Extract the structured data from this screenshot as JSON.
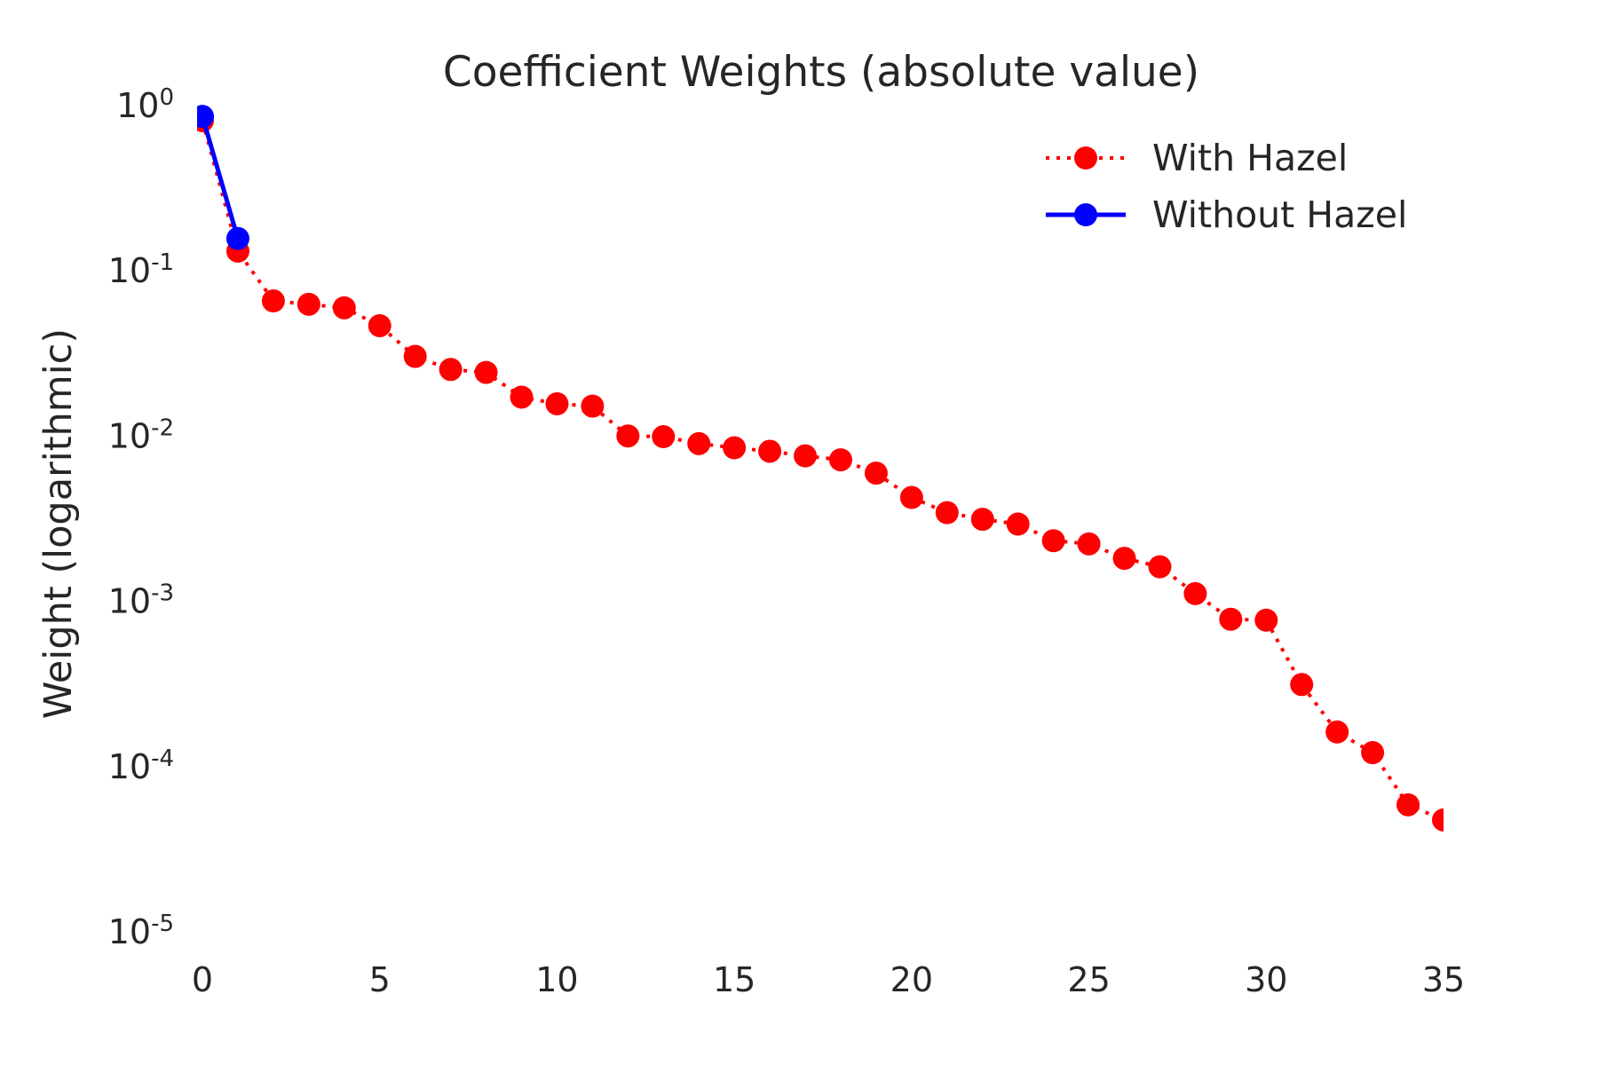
{
  "chart_data": {
    "type": "line",
    "title": "Coefficient Weights (absolute value)",
    "xlabel": "",
    "ylabel": "Weight (logarithmic)",
    "yscale": "log",
    "xlim": [
      0,
      35
    ],
    "ylim": [
      1e-05,
      1
    ],
    "x_ticks": [
      "0",
      "5",
      "10",
      "15",
      "20",
      "25",
      "30",
      "35"
    ],
    "x_tick_values": [
      0,
      5,
      10,
      15,
      20,
      25,
      30,
      35
    ],
    "y_ticks": [
      {
        "base": "10",
        "exp": "0",
        "value": 1
      },
      {
        "base": "10",
        "exp": "-1",
        "value": 0.1
      },
      {
        "base": "10",
        "exp": "-2",
        "value": 0.01
      },
      {
        "base": "10",
        "exp": "-3",
        "value": 0.001
      },
      {
        "base": "10",
        "exp": "-4",
        "value": 0.0001
      },
      {
        "base": "10",
        "exp": "-5",
        "value": 1e-05
      }
    ],
    "grid": false,
    "legend_position": "top-right",
    "series": [
      {
        "name": "With Hazel",
        "color": "#ff0000",
        "line_style": "dotted",
        "marker": "circle",
        "x": [
          0,
          1,
          2,
          3,
          4,
          5,
          6,
          7,
          8,
          9,
          10,
          11,
          12,
          13,
          14,
          15,
          16,
          17,
          18,
          19,
          20,
          21,
          22,
          23,
          24,
          25,
          26,
          27,
          28,
          29,
          30,
          31,
          32,
          33,
          34,
          35
        ],
        "values": [
          0.8,
          0.13,
          0.065,
          0.062,
          0.059,
          0.046,
          0.03,
          0.025,
          0.024,
          0.017,
          0.0155,
          0.015,
          0.0099,
          0.0098,
          0.0089,
          0.0084,
          0.008,
          0.0075,
          0.0071,
          0.0059,
          0.0042,
          0.0034,
          0.0031,
          0.0029,
          0.0023,
          0.0022,
          0.0018,
          0.0016,
          0.0011,
          0.00077,
          0.00076,
          0.00031,
          0.00016,
          0.00012,
          5.8e-05,
          4.7e-05
        ]
      },
      {
        "name": "Without Hazel",
        "color": "#0000ff",
        "line_style": "solid",
        "marker": "circle",
        "x": [
          0,
          1
        ],
        "values": [
          0.85,
          0.155
        ]
      }
    ]
  }
}
